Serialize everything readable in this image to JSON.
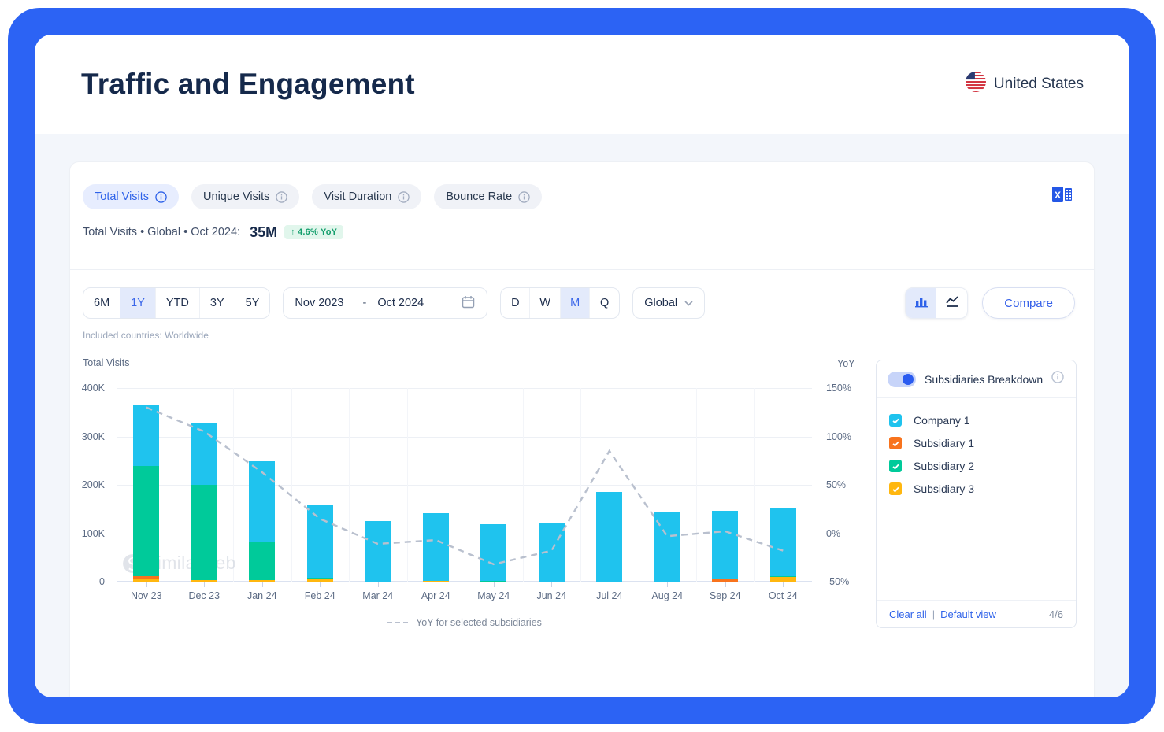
{
  "window": {
    "title": "Traffic and Engagement",
    "country": "United States"
  },
  "metrics": {
    "tabs": [
      {
        "label": "Total Visits",
        "selected": true
      },
      {
        "label": "Unique Visits",
        "selected": false
      },
      {
        "label": "Visit Duration",
        "selected": false
      },
      {
        "label": "Bounce Rate",
        "selected": false
      }
    ],
    "summary": {
      "prefix": "Total Visits • Global • Oct 2024:",
      "value": "35M",
      "badge": "↑ 4.6% YoY"
    }
  },
  "toolbar": {
    "ranges": [
      "6M",
      "1Y",
      "YTD",
      "3Y",
      "5Y"
    ],
    "range_selected": "1Y",
    "date_from": "Nov 2023",
    "date_sep": "-",
    "date_to": "Oct 2024",
    "granularities": [
      "D",
      "W",
      "M",
      "Q"
    ],
    "granularity_selected": "M",
    "region": "Global",
    "compare_label": "Compare",
    "included_note": "Included countries: Worldwide"
  },
  "chart_data": {
    "type": "bar",
    "stacked": true,
    "categories": [
      "Nov 23",
      "Dec 23",
      "Jan 24",
      "Feb 24",
      "Mar 24",
      "Apr 24",
      "May 24",
      "Jun 24",
      "Jul 24",
      "Aug 24",
      "Sep 24",
      "Oct 24"
    ],
    "series": [
      {
        "name": "Subsidiary 3",
        "color": "#ffb70f",
        "values_k": [
          6,
          4,
          4,
          5,
          0,
          2,
          0,
          0,
          0,
          0,
          0,
          9
        ]
      },
      {
        "name": "Subsidiary 1",
        "color": "#f8731d",
        "values_k": [
          5,
          0,
          0,
          0,
          0,
          0,
          0,
          0,
          0,
          0,
          5,
          0
        ]
      },
      {
        "name": "Subsidiary 2",
        "color": "#00ca9a",
        "values_k": [
          228,
          196,
          79,
          3,
          0,
          0,
          2,
          0,
          0,
          0,
          0,
          2
        ]
      },
      {
        "name": "Company 1",
        "color": "#1fc3ee",
        "values_k": [
          127,
          128,
          166,
          151,
          125,
          139,
          117,
          122,
          185,
          143,
          141,
          140
        ]
      }
    ],
    "line_series": {
      "name": "YoY for selected subsidiaries",
      "style": "dashed",
      "color": "#b9c0ce",
      "axis": "right",
      "values_pct": [
        130,
        105,
        63,
        15,
        -11,
        -7,
        -32,
        -18,
        85,
        -3,
        2,
        -18
      ]
    },
    "left_axis": {
      "title": "Total Visits",
      "ticks": [
        "400K",
        "300K",
        "200K",
        "100K",
        "0"
      ],
      "max": 400000,
      "min": 0,
      "grid": true
    },
    "right_axis": {
      "title": "YoY",
      "ticks": [
        "150%",
        "100%",
        "50%",
        "0%",
        "-50%"
      ],
      "max": 150,
      "min": -50
    },
    "legend_position": "bottom"
  },
  "panel": {
    "title": "Subsidiaries Breakdown",
    "toggle_on": true,
    "items": [
      {
        "label": "Company 1",
        "color": "#1fc3ee",
        "checked": true
      },
      {
        "label": "Subsidiary 1",
        "color": "#f8731d",
        "checked": true
      },
      {
        "label": "Subsidiary 2",
        "color": "#00ca9a",
        "checked": true
      },
      {
        "label": "Subsidiary 3",
        "color": "#ffb70f",
        "checked": true
      }
    ],
    "footer": {
      "clear": "Clear all",
      "sep": "|",
      "default": "Default view",
      "count": "4/6"
    }
  },
  "watermark": "similarweb",
  "colors": {
    "accent": "#2e62e9",
    "frame": "#2c63f4",
    "badge_green": "#139e6c"
  }
}
